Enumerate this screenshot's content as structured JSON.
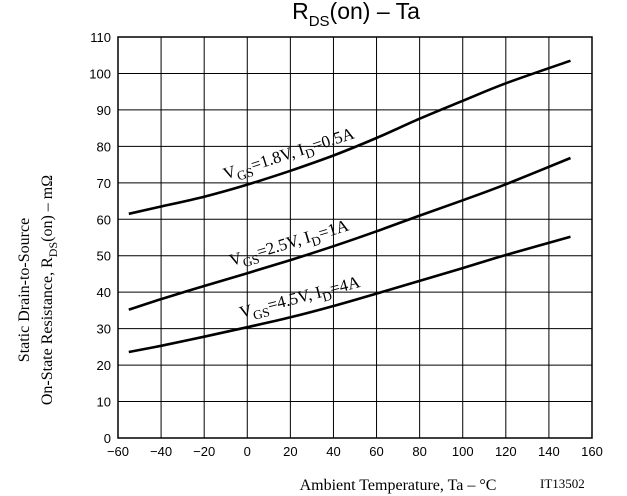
{
  "chart_data": {
    "type": "line",
    "title": {
      "prefix": "R",
      "prefix_sub": "DS",
      "suffix": "(on)  –  Ta"
    },
    "xlabel": "Ambient Temperature, Ta  –  °C",
    "ylabel": {
      "line1": "Static Drain-to-Source",
      "line2_prefix": "On-State Resistance, R",
      "line2_sub": "DS",
      "line2_suffix": "(on)  –  mΩ"
    },
    "xlim": [
      -60,
      160
    ],
    "ylim": [
      0,
      110
    ],
    "xticks": [
      -60,
      -40,
      -20,
      0,
      20,
      40,
      60,
      80,
      100,
      120,
      140,
      160
    ],
    "yticks": [
      0,
      10,
      20,
      30,
      40,
      50,
      60,
      70,
      80,
      90,
      100,
      110
    ],
    "xtick_labels": [
      "−60",
      "−40",
      "−20",
      "0",
      "20",
      "40",
      "60",
      "80",
      "100",
      "120",
      "140",
      "160"
    ],
    "ytick_labels": [
      "0",
      "10",
      "20",
      "30",
      "40",
      "50",
      "60",
      "70",
      "80",
      "90",
      "100",
      "110"
    ],
    "grid": true,
    "series": [
      {
        "label": {
          "a": "V",
          "a_sub": "GS",
          "b": "=1.8V, I",
          "b_sub": "D",
          "c": "=0.5A"
        },
        "x": [
          -55,
          -40,
          -20,
          0,
          20,
          40,
          60,
          80,
          100,
          120,
          150
        ],
        "y": [
          61.5,
          63.5,
          66.2,
          69.5,
          73.3,
          77.5,
          82.3,
          87.6,
          92.5,
          97.3,
          103.5
        ]
      },
      {
        "label": {
          "a": "V",
          "a_sub": "GS",
          "b": "=2.5V, I",
          "b_sub": "D",
          "c": "=1A"
        },
        "x": [
          -55,
          -40,
          -20,
          0,
          20,
          40,
          60,
          80,
          100,
          120,
          150
        ],
        "y": [
          35.2,
          38.1,
          41.7,
          45.2,
          48.8,
          52.6,
          56.7,
          61.0,
          65.2,
          69.6,
          76.8
        ]
      },
      {
        "label": {
          "a": "V",
          "a_sub": "GS",
          "b": "=4.5V, I",
          "b_sub": "D",
          "c": "=4A"
        },
        "x": [
          -55,
          -40,
          -20,
          0,
          20,
          40,
          60,
          80,
          100,
          120,
          150
        ],
        "y": [
          23.6,
          25.3,
          27.8,
          30.4,
          33.1,
          36.2,
          39.6,
          43.1,
          46.6,
          50.2,
          55.2
        ]
      }
    ],
    "annotation": "IT13502"
  }
}
